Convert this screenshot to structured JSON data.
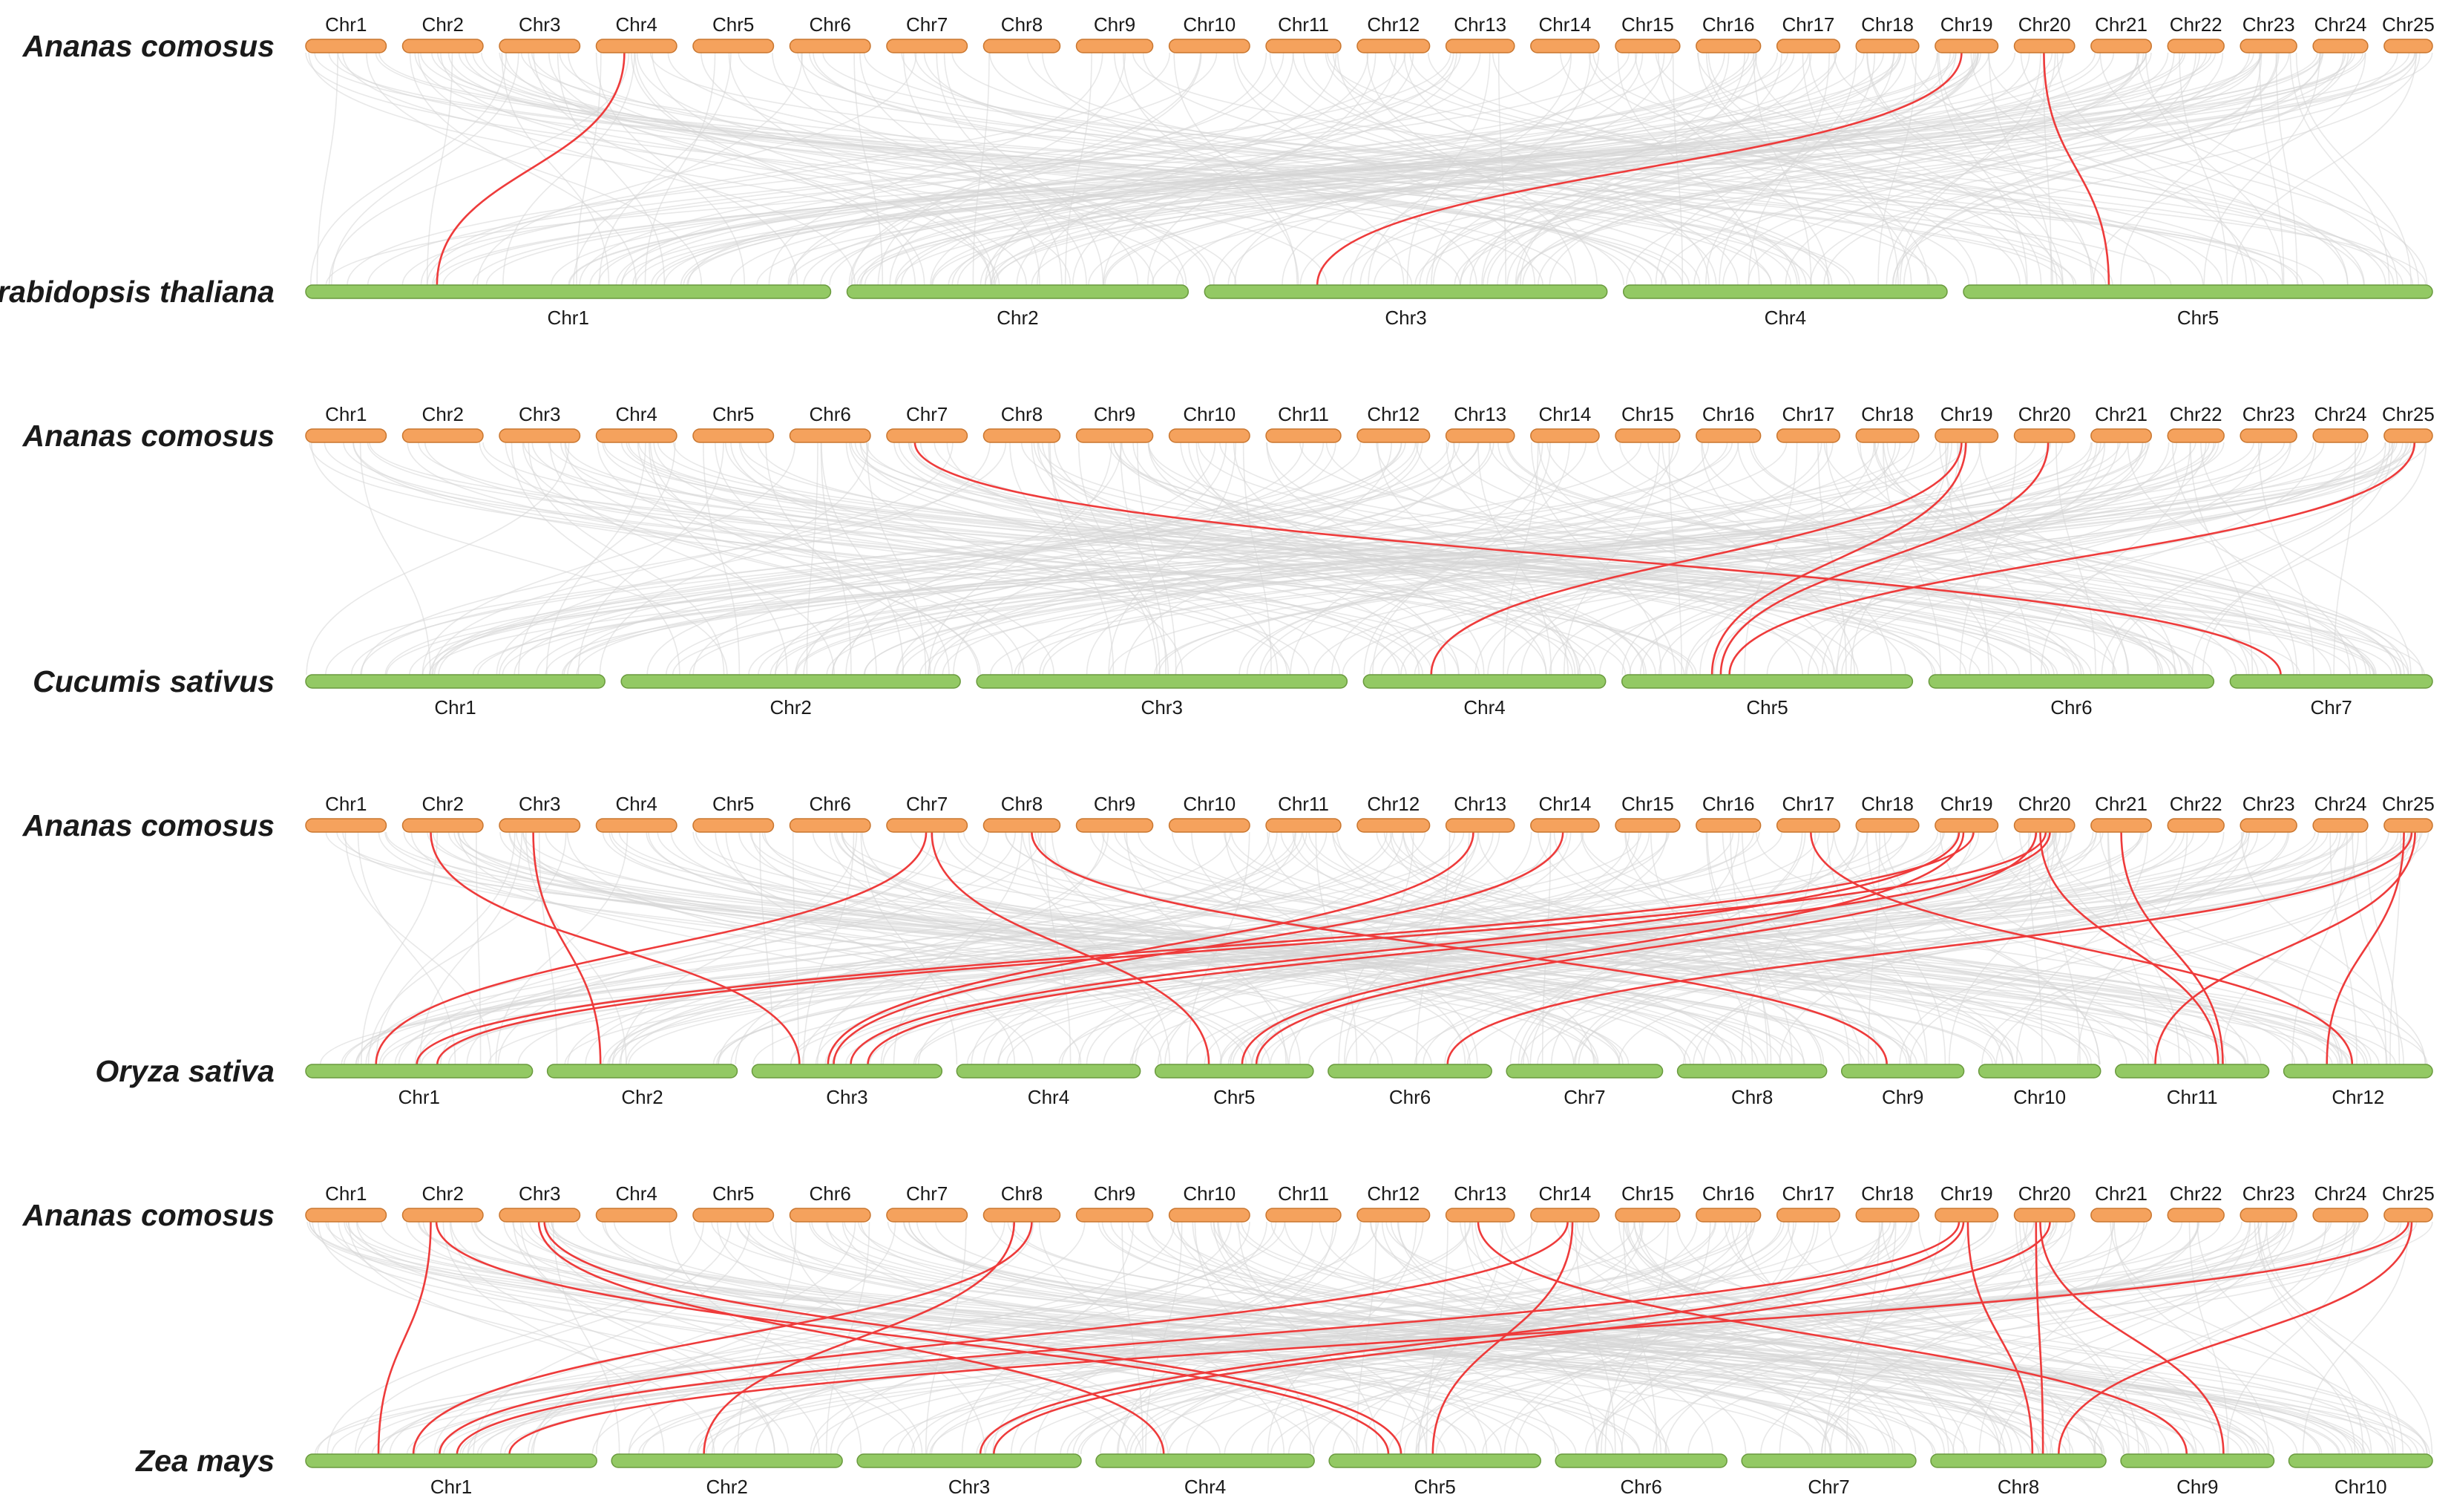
{
  "reference_species": "Ananas comosus",
  "colors": {
    "reference_chromosome": "#f5a25d",
    "reference_outline": "#c9762f",
    "target_chromosome": "#93c964",
    "target_outline": "#6a9a3e",
    "background_link": "#d6d6d6",
    "highlight_link": "#ee3b3b"
  },
  "reference_chromosomes": [
    "Chr1",
    "Chr2",
    "Chr3",
    "Chr4",
    "Chr5",
    "Chr6",
    "Chr7",
    "Chr8",
    "Chr9",
    "Chr10",
    "Chr11",
    "Chr12",
    "Chr13",
    "Chr14",
    "Chr15",
    "Chr16",
    "Chr17",
    "Chr18",
    "Chr19",
    "Chr20",
    "Chr21",
    "Chr22",
    "Chr23",
    "Chr24",
    "Chr25"
  ],
  "panels": [
    {
      "species": "Arabidopsis thaliana",
      "chromosomes": [
        "Chr1",
        "Chr2",
        "Chr3",
        "Chr4",
        "Chr5"
      ],
      "highlight_links": [
        {
          "ref": "Chr4",
          "target": "Chr1"
        },
        {
          "ref": "Chr19",
          "target": "Chr3"
        },
        {
          "ref": "Chr20",
          "target": "Chr5"
        }
      ]
    },
    {
      "species": "Cucumis sativus",
      "chromosomes": [
        "Chr1",
        "Chr2",
        "Chr3",
        "Chr4",
        "Chr5",
        "Chr6",
        "Chr7"
      ],
      "highlight_links": [
        {
          "ref": "Chr7",
          "target": "Chr7"
        },
        {
          "ref": "Chr19",
          "target": "Chr4"
        },
        {
          "ref": "Chr19",
          "target": "Chr5"
        },
        {
          "ref": "Chr20",
          "target": "Chr5"
        },
        {
          "ref": "Chr25",
          "target": "Chr5"
        }
      ]
    },
    {
      "species": "Oryza sativa",
      "chromosomes": [
        "Chr1",
        "Chr2",
        "Chr3",
        "Chr4",
        "Chr5",
        "Chr6",
        "Chr7",
        "Chr8",
        "Chr9",
        "Chr10",
        "Chr11",
        "Chr12"
      ],
      "highlight_links": [
        {
          "ref": "Chr2",
          "target": "Chr3"
        },
        {
          "ref": "Chr3",
          "target": "Chr2"
        },
        {
          "ref": "Chr7",
          "target": "Chr1"
        },
        {
          "ref": "Chr7",
          "target": "Chr5"
        },
        {
          "ref": "Chr8",
          "target": "Chr9"
        },
        {
          "ref": "Chr13",
          "target": "Chr3"
        },
        {
          "ref": "Chr14",
          "target": "Chr3"
        },
        {
          "ref": "Chr17",
          "target": "Chr12"
        },
        {
          "ref": "Chr19",
          "target": "Chr1"
        },
        {
          "ref": "Chr19",
          "target": "Chr3"
        },
        {
          "ref": "Chr19",
          "target": "Chr5"
        },
        {
          "ref": "Chr20",
          "target": "Chr1"
        },
        {
          "ref": "Chr20",
          "target": "Chr3"
        },
        {
          "ref": "Chr20",
          "target": "Chr5"
        },
        {
          "ref": "Chr20",
          "target": "Chr11"
        },
        {
          "ref": "Chr21",
          "target": "Chr11"
        },
        {
          "ref": "Chr25",
          "target": "Chr6"
        },
        {
          "ref": "Chr25",
          "target": "Chr11"
        },
        {
          "ref": "Chr25",
          "target": "Chr12"
        }
      ]
    },
    {
      "species": "Zea mays",
      "chromosomes": [
        "Chr1",
        "Chr2",
        "Chr3",
        "Chr4",
        "Chr5",
        "Chr6",
        "Chr7",
        "Chr8",
        "Chr9",
        "Chr10"
      ],
      "highlight_links": [
        {
          "ref": "Chr2",
          "target": "Chr1"
        },
        {
          "ref": "Chr2",
          "target": "Chr5"
        },
        {
          "ref": "Chr3",
          "target": "Chr4"
        },
        {
          "ref": "Chr3",
          "target": "Chr5"
        },
        {
          "ref": "Chr8",
          "target": "Chr1"
        },
        {
          "ref": "Chr8",
          "target": "Chr2"
        },
        {
          "ref": "Chr13",
          "target": "Chr9"
        },
        {
          "ref": "Chr14",
          "target": "Chr1"
        },
        {
          "ref": "Chr14",
          "target": "Chr5"
        },
        {
          "ref": "Chr19",
          "target": "Chr1"
        },
        {
          "ref": "Chr19",
          "target": "Chr3"
        },
        {
          "ref": "Chr19",
          "target": "Chr8"
        },
        {
          "ref": "Chr20",
          "target": "Chr3"
        },
        {
          "ref": "Chr20",
          "target": "Chr8"
        },
        {
          "ref": "Chr20",
          "target": "Chr9"
        },
        {
          "ref": "Chr25",
          "target": "Chr1"
        },
        {
          "ref": "Chr25",
          "target": "Chr8"
        }
      ]
    }
  ]
}
